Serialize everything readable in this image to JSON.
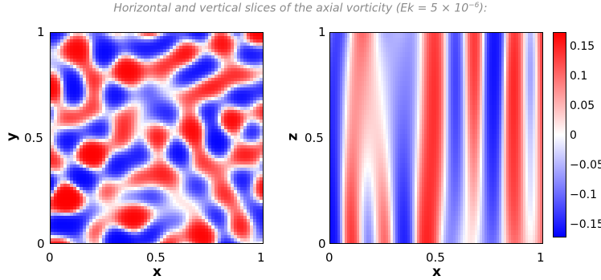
{
  "caption": {
    "prefix": "Horizontal and vertical slices of the axial vorticity (",
    "ek_label": "Ek",
    "eq": " = 5 × 10",
    "exp": "−6",
    "suffix": "):"
  },
  "left_panel": {
    "xlabel": "x",
    "ylabel": "y",
    "x_ticks": [
      "0",
      "0.5",
      "1"
    ],
    "y_ticks": [
      "0",
      "0.5",
      "1"
    ]
  },
  "right_panel": {
    "xlabel": "x",
    "ylabel": "z",
    "x_ticks": [
      "0",
      "0.5",
      "1"
    ],
    "y_ticks": [
      "0",
      "0.5",
      "1"
    ]
  },
  "colorbar": {
    "ticks": [
      "0.15",
      "0.1",
      "0.05",
      "0",
      "−0.05",
      "−0.1",
      "−0.15"
    ],
    "range": [
      -0.17,
      0.17
    ],
    "colors": {
      "high": "#ff0000",
      "mid": "#ffffff",
      "low": "#0000ff"
    }
  }
}
